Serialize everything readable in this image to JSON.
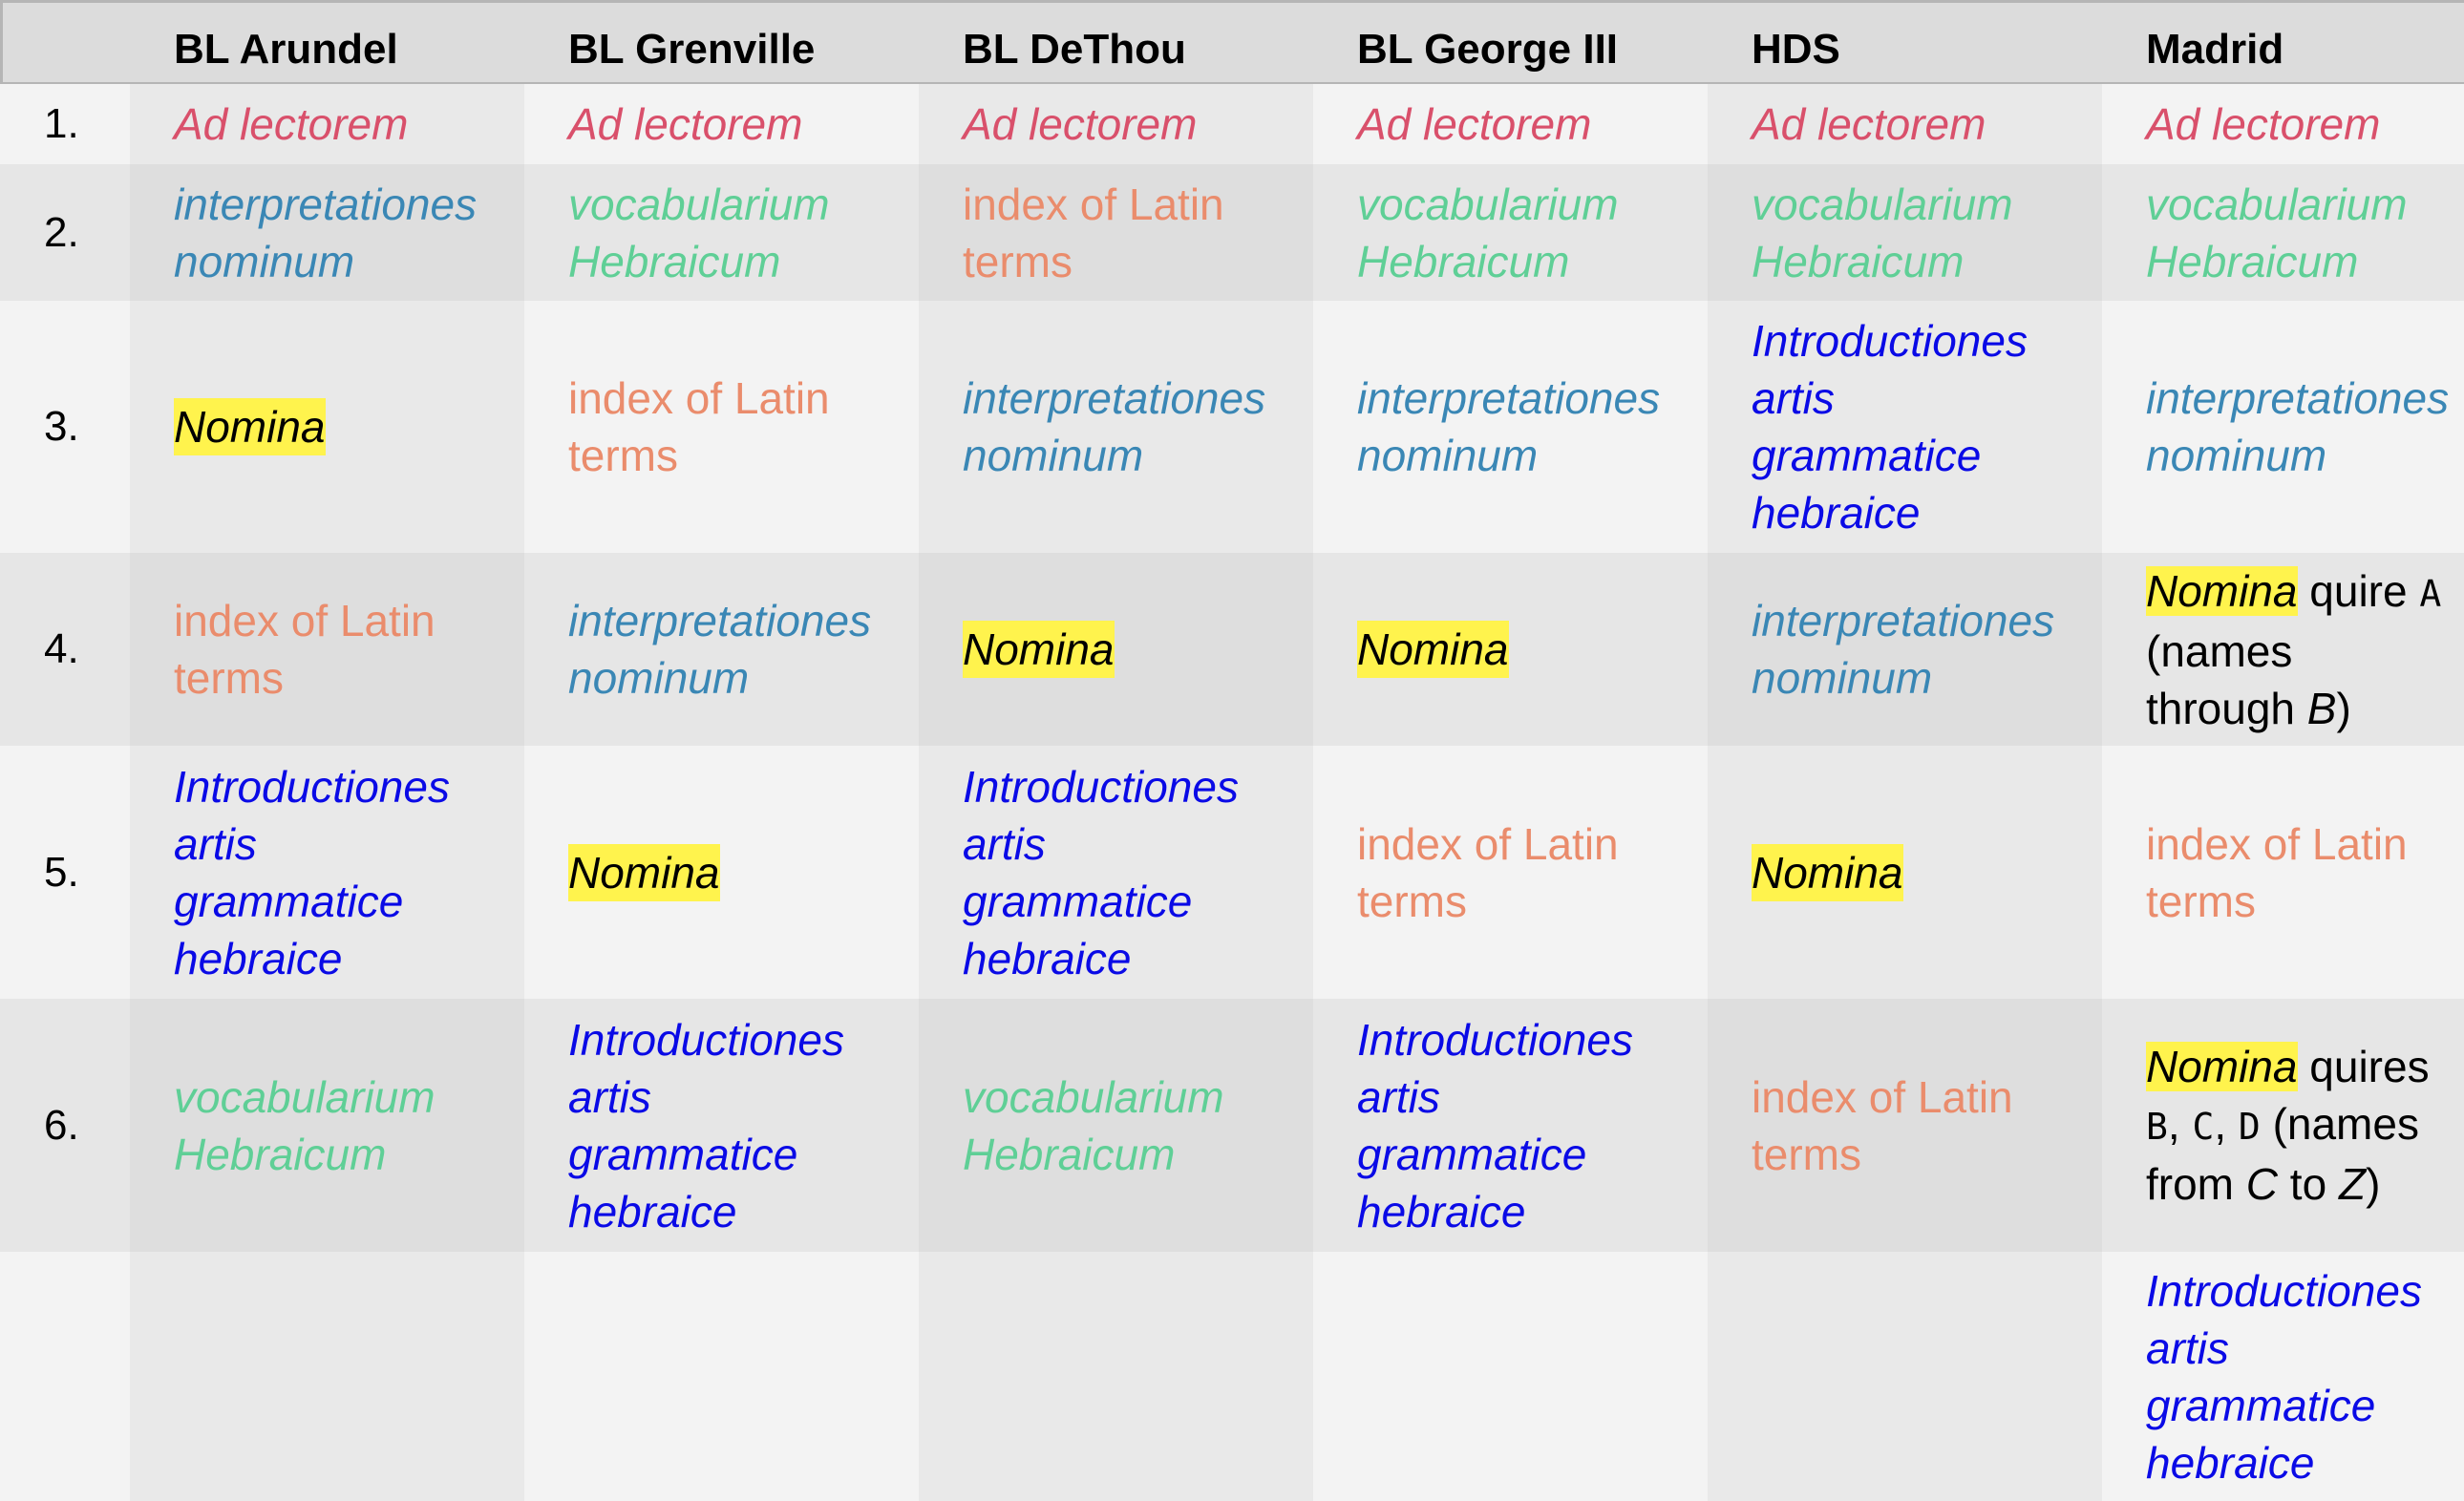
{
  "headers": [
    "",
    "BL Arundel",
    "BL Grenville",
    "BL DeThou",
    "BL George III",
    "HDS",
    "Madrid"
  ],
  "row_numbers": [
    "1.",
    "2.",
    "3.",
    "4.",
    "5.",
    "6.",
    ""
  ],
  "labels": {
    "ad_lectorem": "Ad lectorem",
    "interp": [
      "interpretationes",
      "nominum"
    ],
    "vocab": [
      "vocabularium",
      "Hebraicum"
    ],
    "index": [
      "index of Latin",
      "terms"
    ],
    "intro": [
      "Introductiones",
      "artis",
      "grammatice",
      "hebraice"
    ],
    "nomina": "Nomina"
  },
  "madrid_notes": {
    "row4": {
      "suffix": " quire ",
      "quire": "A",
      "paren_open": "(names",
      "through": "through ",
      "through_letter": "B",
      "paren_close": ")"
    },
    "row6": {
      "suffix": " quires",
      "q1": "B",
      "sep1": ", ",
      "q2": "C",
      "sep2": ", ",
      "q3": "D",
      "paren_open": " (names",
      "from": "from ",
      "from_letter": "C",
      "to": " to ",
      "to_letter": "Z",
      "paren_close": ")"
    }
  },
  "colors": {
    "ad_lectorem": "#d9506b",
    "interpretationes": "#3a87b5",
    "vocabularium": "#5fcf96",
    "index": "#ea8c6c",
    "introductiones": "#0a0ae6",
    "highlight": "#fff34d"
  }
}
